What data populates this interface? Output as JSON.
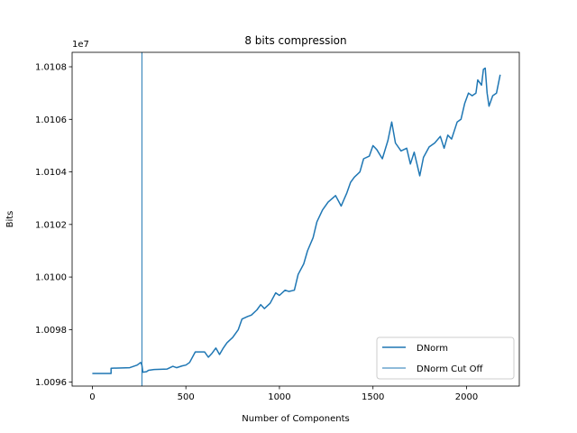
{
  "chart_data": {
    "type": "line",
    "title": "8 bits compression",
    "xlabel": "Number of Components",
    "ylabel": "Bits",
    "y_offset_label": "1e7",
    "xlim": [
      -108,
      2282
    ],
    "ylim": [
      10095850,
      10108550
    ],
    "x_ticks": [
      0,
      500,
      1000,
      1500,
      2000
    ],
    "x_tick_labels": [
      "0",
      "500",
      "1000",
      "1500",
      "2000"
    ],
    "y_ticks": [
      10096000,
      10098000,
      10100000,
      10102000,
      10104000,
      10106000,
      10108000
    ],
    "y_tick_labels": [
      "1.0096",
      "1.0098",
      "1.0100",
      "1.0102",
      "1.0104",
      "1.0106",
      "1.0108"
    ],
    "legend_position": "lower-right",
    "grid": false,
    "colors": {
      "series": "#1f77b4"
    },
    "series": [
      {
        "name": "DNorm",
        "x": [
          0,
          100,
          100,
          200,
          240,
          258,
          265,
          270,
          290,
          300,
          330,
          400,
          430,
          450,
          480,
          500,
          520,
          550,
          600,
          620,
          640,
          660,
          680,
          700,
          720,
          750,
          780,
          800,
          830,
          850,
          880,
          900,
          920,
          950,
          980,
          1000,
          1030,
          1050,
          1080,
          1100,
          1130,
          1150,
          1180,
          1200,
          1230,
          1260,
          1300,
          1330,
          1360,
          1380,
          1400,
          1430,
          1450,
          1480,
          1500,
          1520,
          1550,
          1580,
          1600,
          1620,
          1650,
          1680,
          1700,
          1720,
          1750,
          1770,
          1800,
          1830,
          1860,
          1880,
          1900,
          1920,
          1950,
          1970,
          1990,
          2010,
          2030,
          2050,
          2060,
          2080,
          2090,
          2100,
          2110,
          2120,
          2140,
          2160,
          2180
        ],
        "y": [
          10096330,
          10096330,
          10096530,
          10096550,
          10096650,
          10096750,
          10096650,
          10096380,
          10096400,
          10096450,
          10096480,
          10096500,
          10096600,
          10096550,
          10096620,
          10096650,
          10096750,
          10097150,
          10097150,
          10096950,
          10097100,
          10097300,
          10097050,
          10097300,
          10097500,
          10097700,
          10098000,
          10098400,
          10098500,
          10098550,
          10098750,
          10098950,
          10098800,
          10099000,
          10099400,
          10099300,
          10099500,
          10099450,
          10099500,
          10100100,
          10100500,
          10101000,
          10101500,
          10102100,
          10102550,
          10102850,
          10103100,
          10102700,
          10103200,
          10103600,
          10103800,
          10104000,
          10104500,
          10104600,
          10105000,
          10104850,
          10104500,
          10105200,
          10105900,
          10105100,
          10104800,
          10104900,
          10104300,
          10104750,
          10103850,
          10104550,
          10104950,
          10105100,
          10105350,
          10104900,
          10105400,
          10105250,
          10105900,
          10106000,
          10106600,
          10107000,
          10106900,
          10107000,
          10107500,
          10107300,
          10107900,
          10107950,
          10107000,
          10106500,
          10106900,
          10107000,
          10107700
        ]
      },
      {
        "name": "DNorm Cut Off",
        "type": "vline",
        "x": 265
      }
    ]
  }
}
